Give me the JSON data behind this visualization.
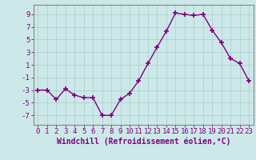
{
  "x": [
    0,
    1,
    2,
    3,
    4,
    5,
    6,
    7,
    8,
    9,
    10,
    11,
    12,
    13,
    14,
    15,
    16,
    17,
    18,
    19,
    20,
    21,
    22,
    23
  ],
  "y": [
    -3,
    -3,
    -4.5,
    -2.8,
    -3.8,
    -4.2,
    -4.2,
    -7,
    -7,
    -4.5,
    -3.5,
    -1.5,
    1.2,
    3.8,
    6.3,
    9.2,
    9.0,
    8.8,
    9.0,
    6.5,
    4.5,
    2.0,
    1.2,
    -1.5
  ],
  "line_color": "#800080",
  "marker_color": "#800080",
  "bg_color": "#cce8e8",
  "grid_color": "#aacccc",
  "axis_color": "#800080",
  "spine_color": "#888888",
  "xlabel": "Windchill (Refroidissement éolien,°C)",
  "ylim": [
    -8.5,
    10.5
  ],
  "xlim": [
    -0.5,
    23.5
  ],
  "yticks": [
    -7,
    -5,
    -3,
    -1,
    1,
    3,
    5,
    7,
    9
  ],
  "xtick_labels": [
    "0",
    "1",
    "2",
    "3",
    "4",
    "5",
    "6",
    "7",
    "8",
    "9",
    "10",
    "11",
    "12",
    "13",
    "14",
    "15",
    "16",
    "17",
    "18",
    "19",
    "20",
    "21",
    "22",
    "23"
  ],
  "tick_fontsize": 6.5,
  "xlabel_fontsize": 7,
  "marker_size": 4,
  "line_width": 1.0
}
